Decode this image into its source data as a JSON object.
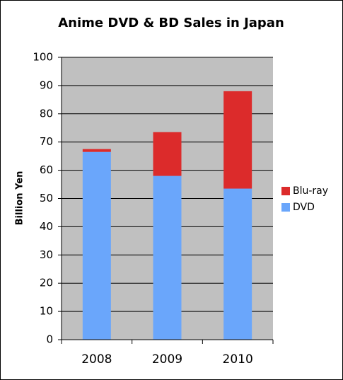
{
  "chart_data": {
    "type": "stacked_bar",
    "title": "Anime DVD & BD Sales in Japan",
    "y_label": "Billion Yen",
    "categories": [
      "2008",
      "2009",
      "2010"
    ],
    "series": [
      {
        "name": "DVD",
        "color": "#6aa6fb",
        "values": [
          66.5,
          58,
          53.5
        ]
      },
      {
        "name": "Blu-ray",
        "color": "#dc2b2b",
        "values": [
          1,
          15.5,
          34.5
        ]
      }
    ],
    "ylim": [
      0,
      100
    ],
    "yticks": [
      0,
      10,
      20,
      30,
      40,
      50,
      60,
      70,
      80,
      90,
      100
    ],
    "grid": true,
    "legend": "right"
  }
}
